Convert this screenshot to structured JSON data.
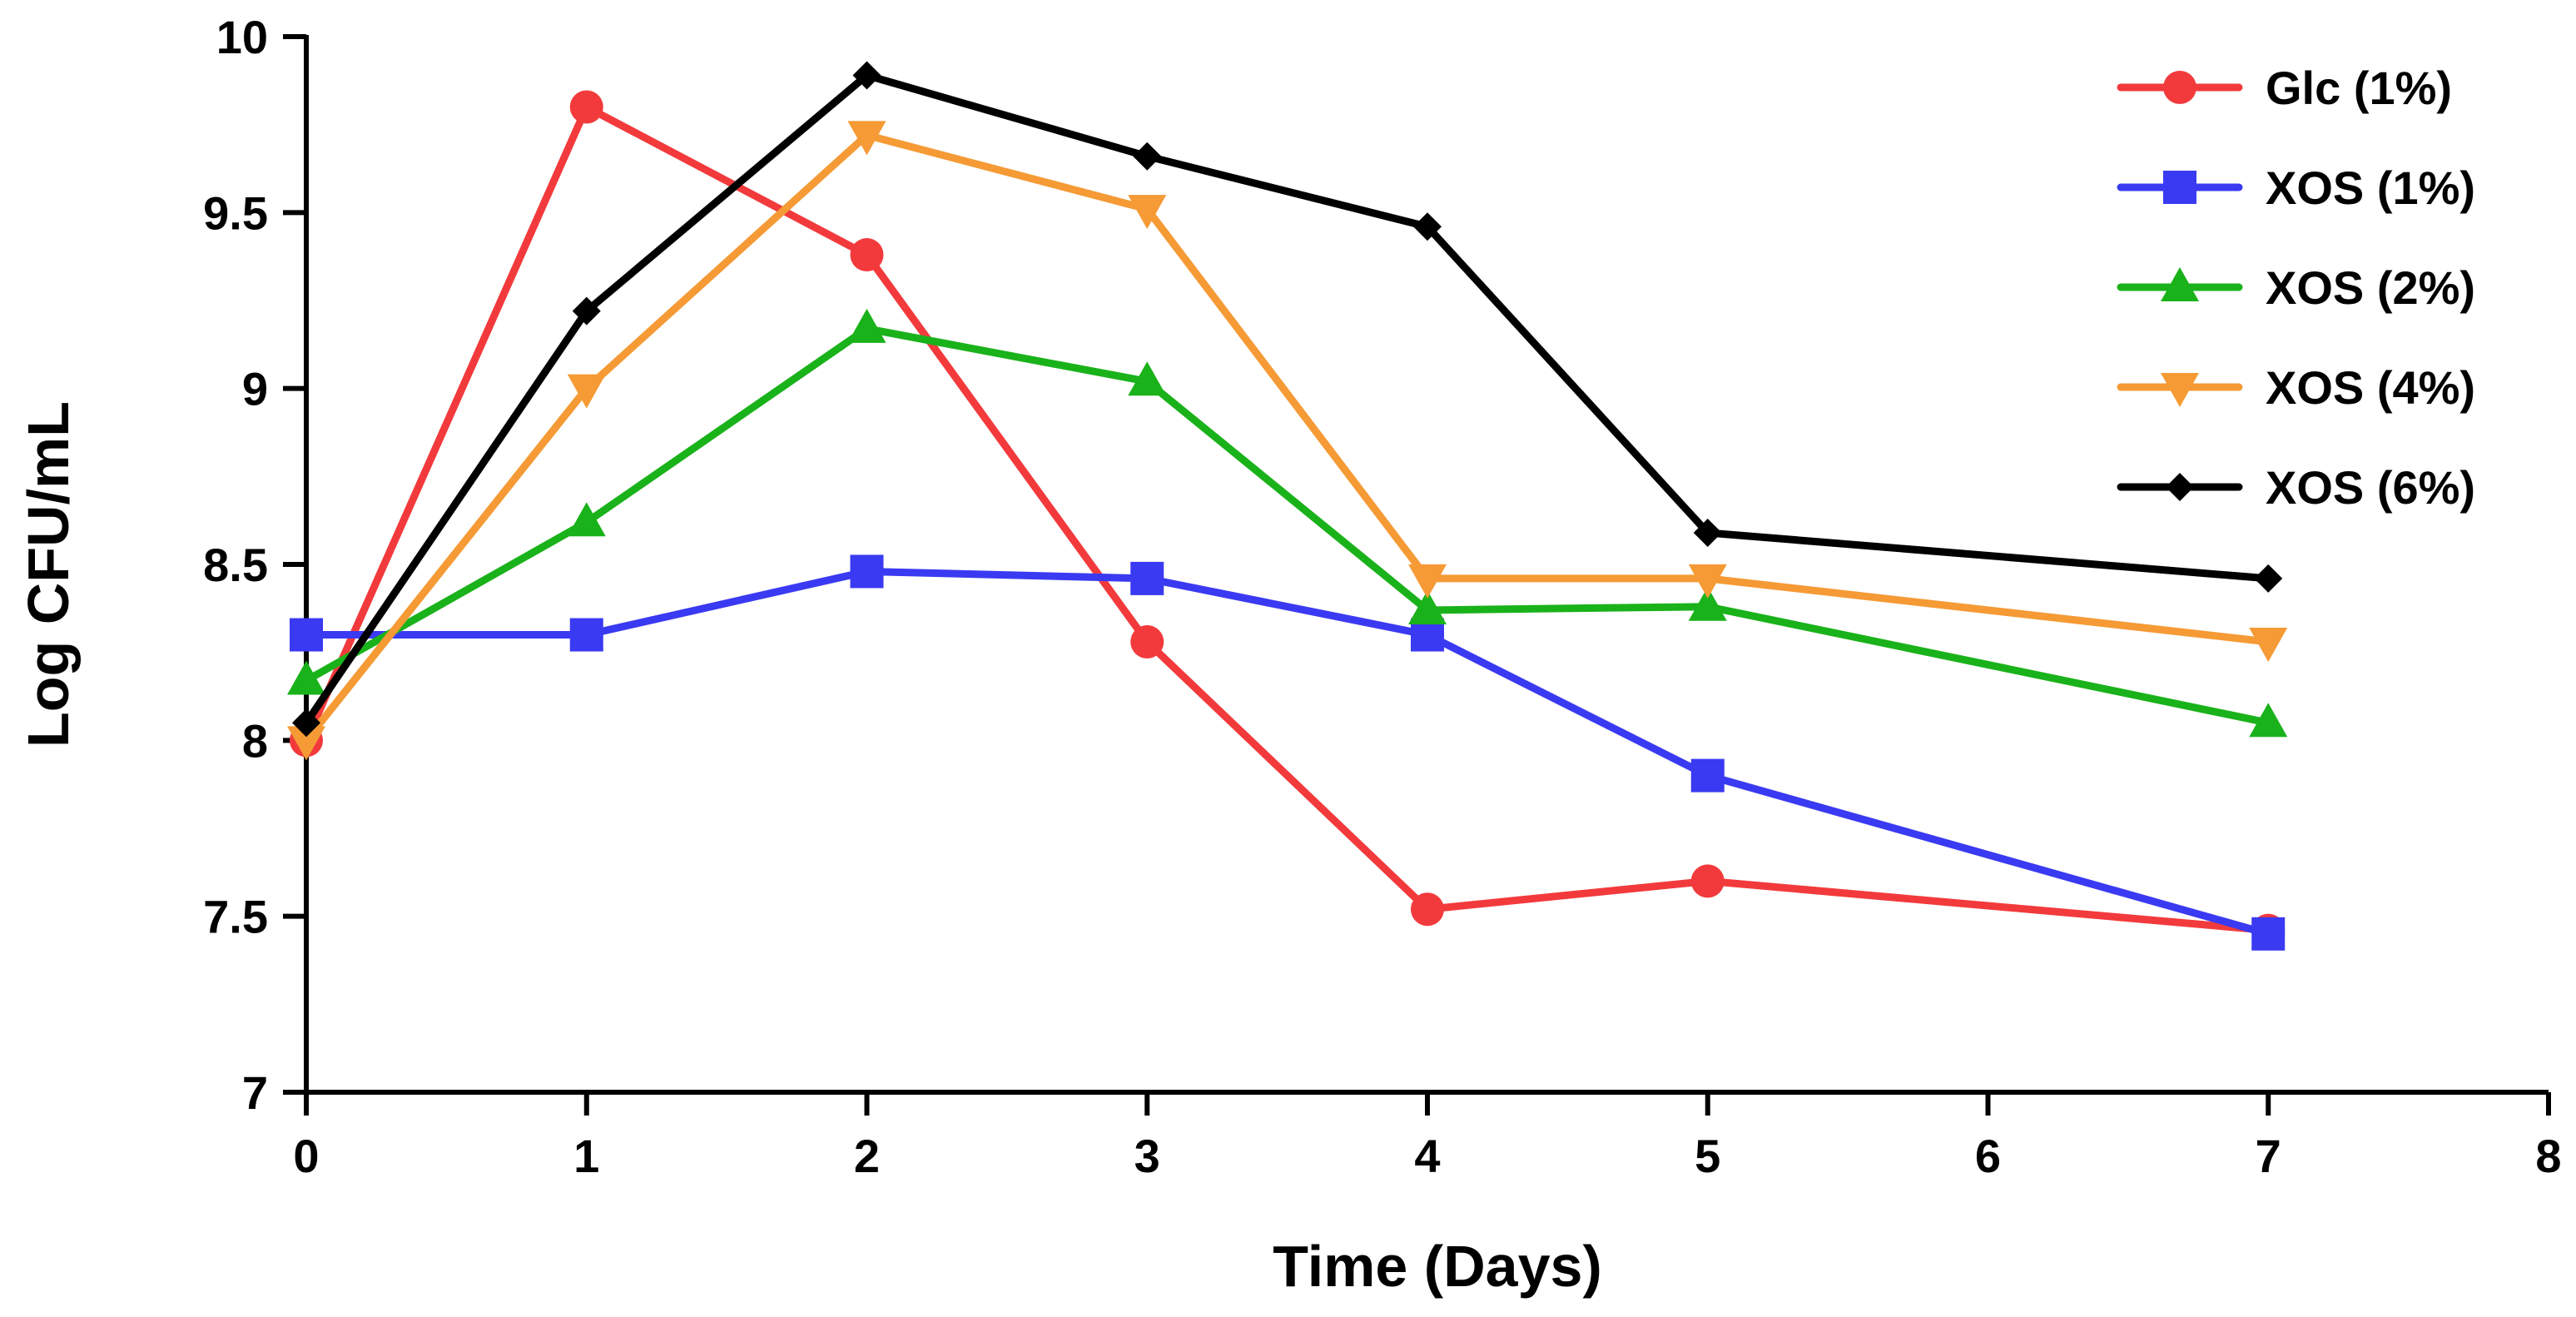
{
  "chart_data": {
    "type": "line",
    "title": "",
    "xlabel": "Time (Days)",
    "ylabel": "Log CFU/mL",
    "xlim": [
      0,
      8
    ],
    "ylim": [
      7,
      10
    ],
    "xticks": [
      0,
      1,
      2,
      3,
      4,
      5,
      6,
      7,
      8
    ],
    "xtick_labels": [
      "0",
      "1",
      "2",
      "3",
      "4",
      "5",
      "6",
      "7",
      "8"
    ],
    "yticks": [
      7,
      7.5,
      8,
      8.5,
      9,
      9.5,
      10
    ],
    "ytick_labels": [
      "7",
      "7.5",
      "8",
      "8.5",
      "9",
      "9.5",
      "10"
    ],
    "grid": false,
    "legend_position": "top-right",
    "x": [
      0,
      1,
      2,
      3,
      4,
      5,
      7
    ],
    "series": [
      {
        "name": "Glc (1%)",
        "color": "#f23a3c",
        "marker": "circle",
        "values": [
          8.0,
          9.8,
          9.38,
          8.28,
          7.52,
          7.6,
          7.46
        ]
      },
      {
        "name": "XOS (1%)",
        "color": "#3a3af2",
        "marker": "square",
        "values": [
          8.3,
          8.3,
          8.48,
          8.46,
          8.3,
          7.9,
          7.45
        ]
      },
      {
        "name": "XOS (2%)",
        "color": "#1ab21a",
        "marker": "triangle-up",
        "values": [
          8.17,
          8.62,
          9.17,
          9.02,
          8.37,
          8.38,
          8.05
        ]
      },
      {
        "name": "XOS (4%)",
        "color": "#f59a35",
        "marker": "triangle-down",
        "values": [
          8.0,
          9.0,
          9.72,
          9.51,
          8.46,
          8.46,
          8.28
        ]
      },
      {
        "name": "XOS (6%)",
        "color": "#000000",
        "marker": "diamond",
        "values": [
          8.05,
          9.22,
          9.89,
          9.66,
          9.46,
          8.59,
          8.46
        ]
      }
    ]
  }
}
